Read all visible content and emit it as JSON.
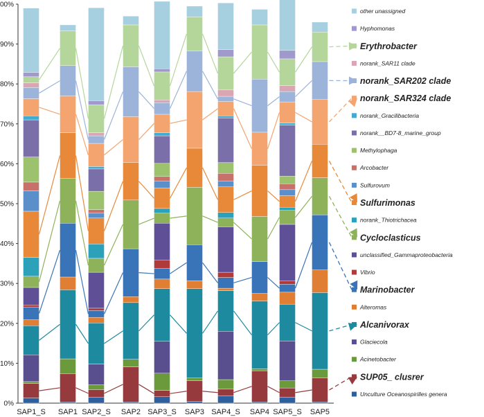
{
  "chart_data": {
    "type": "stacked-bar",
    "title": "",
    "xlabel": "",
    "ylabel": "",
    "ylim": [
      0,
      100
    ],
    "y_ticks": [
      "0%",
      "10%",
      "20%",
      "30%",
      "40%",
      "50%",
      "60%",
      "70%",
      "80%",
      "90%",
      "100%"
    ],
    "categories": [
      "SAP1_S",
      "SAP1",
      "SAP2_S",
      "SAP2",
      "SAP3_S",
      "SAP3",
      "SAP4_S",
      "SAP4",
      "SAP5_S",
      "SAP5"
    ],
    "series": [
      {
        "name": "Unculture Oceanospirilles genera",
        "color": "#2e5f9e",
        "values": [
          1.3,
          0.3,
          1.5,
          0.3,
          1.6,
          0.4,
          1.8,
          0.3,
          1.5,
          0.3
        ]
      },
      {
        "name": "SUP05_ clusrer",
        "color": "#963a3e",
        "values": [
          3.6,
          7.1,
          1.9,
          8.8,
          1.6,
          5.2,
          1.7,
          7.8,
          2.3,
          6.0
        ]
      },
      {
        "name": "Acinetobacter",
        "color": "#6a9a3c",
        "values": [
          0.5,
          3.7,
          1.2,
          1.9,
          4.3,
          0.7,
          2.4,
          0.5,
          1.8,
          2.2
        ]
      },
      {
        "name": "Glaciecola",
        "color": "#5a4f8e",
        "values": [
          6.7,
          0.0,
          5.2,
          0.0,
          8.0,
          0.0,
          12.1,
          0.0,
          10.0,
          0.0
        ]
      },
      {
        "name": "Alcanivorax",
        "color": "#1e8aa0",
        "values": [
          7.3,
          17.3,
          10.3,
          14.2,
          13.2,
          22.4,
          10.2,
          17.0,
          9.2,
          19.2
        ]
      },
      {
        "name": "Alteromas",
        "color": "#e07e33",
        "values": [
          1.5,
          3.2,
          1.4,
          1.5,
          2.4,
          2.0,
          0.6,
          1.9,
          3.0,
          5.7
        ]
      },
      {
        "name": "Marinobacter",
        "color": "#3a74b8",
        "values": [
          3.2,
          13.5,
          1.7,
          12.0,
          2.7,
          9.0,
          2.7,
          8.0,
          2.0,
          13.8
        ]
      },
      {
        "name": "Vibrio",
        "color": "#b03a3a",
        "values": [
          0.5,
          0.0,
          0.6,
          0.0,
          2.0,
          0.0,
          1.3,
          0.0,
          0.8,
          0.0
        ]
      },
      {
        "name": "unclassified_Gammaproteobacteria",
        "color": "#5e4f96",
        "values": [
          4.4,
          0.0,
          9.0,
          0.0,
          9.3,
          0.0,
          11.4,
          0.0,
          14.2,
          0.0
        ]
      },
      {
        "name": "Cycloclasticus",
        "color": "#8db25a",
        "values": [
          2.8,
          11.2,
          3.5,
          12.2,
          2.5,
          14.4,
          2.2,
          11.3,
          3.5,
          9.3
        ]
      },
      {
        "name": "norank_Thiotrichacea",
        "color": "#2ba2b9",
        "values": [
          4.7,
          0.0,
          3.6,
          0.0,
          1.2,
          0.0,
          1.4,
          0.0,
          0.8,
          0.0
        ]
      },
      {
        "name": "Sulfurimonas",
        "color": "#e8893a",
        "values": [
          11.6,
          11.5,
          6.5,
          9.4,
          5.1,
          9.8,
          6.4,
          12.8,
          2.9,
          8.4
        ]
      },
      {
        "name": "Sulfurovum",
        "color": "#5b8fc9",
        "values": [
          5.1,
          0.0,
          1.2,
          0.0,
          1.8,
          0.0,
          1.5,
          0.0,
          1.5,
          0.0
        ]
      },
      {
        "name": "Arcobacter",
        "color": "#c8716b",
        "values": [
          2.2,
          0.0,
          0.9,
          0.0,
          1.1,
          0.0,
          1.9,
          0.0,
          1.5,
          0.0
        ]
      },
      {
        "name": "Methylophaga",
        "color": "#9dc26e",
        "values": [
          6.3,
          0.0,
          4.6,
          0.0,
          3.3,
          0.0,
          2.7,
          0.0,
          1.9,
          0.0
        ]
      },
      {
        "name": "norank__BD7-8_marine_group",
        "color": "#7b6faa",
        "values": [
          9.3,
          0.0,
          5.6,
          0.0,
          6.9,
          0.0,
          11.2,
          0.0,
          12.8,
          0.0
        ]
      },
      {
        "name": "norank_Gracilibacteria",
        "color": "#41acd1",
        "values": [
          1.0,
          0.0,
          0.6,
          0.0,
          0.8,
          0.0,
          0.5,
          0.0,
          0.5,
          0.0
        ]
      },
      {
        "name": "norank_SAR324 clade",
        "color": "#f4a46e",
        "values": [
          4.3,
          9.2,
          5.8,
          11.5,
          4.6,
          14.2,
          3.6,
          8.3,
          5.3,
          11.2
        ]
      },
      {
        "name": "norank_SAR202 clade",
        "color": "#9cb3da",
        "values": [
          2.8,
          7.6,
          1.9,
          12.5,
          2.9,
          10.2,
          1.3,
          13.3,
          2.6,
          9.5
        ]
      },
      {
        "name": "norank_SAR11 clade",
        "color": "#d9a7b4",
        "values": [
          1.2,
          0.0,
          0.8,
          0.0,
          0.7,
          0.0,
          1.6,
          0.0,
          1.5,
          0.0
        ]
      },
      {
        "name": "Erythrobacter",
        "color": "#b4d69b",
        "values": [
          1.5,
          8.7,
          7.0,
          10.5,
          7.0,
          8.5,
          8.3,
          13.6,
          6.7,
          7.4
        ]
      },
      {
        "name": "Hyphomonas",
        "color": "#9f9acb",
        "values": [
          1.1,
          0.0,
          1.0,
          0.0,
          0.8,
          0.0,
          1.8,
          0.0,
          2.1,
          0.0
        ]
      },
      {
        "name": "other unassigned",
        "color": "#a6cfe0",
        "values": [
          16.1,
          1.5,
          23.3,
          2.2,
          16.9,
          2.7,
          11.7,
          3.9,
          14.8,
          2.5
        ]
      }
    ],
    "highlighted": [
      "Erythrobacter",
      "norank_SAR202 clade",
      "norank_SAR324 clade",
      "Sulfurimonas",
      "Cycloclasticus",
      "Marinobacter",
      "Alcanivorax",
      "SUP05_ clusrer"
    ],
    "legend_position": "right",
    "grid": false
  }
}
